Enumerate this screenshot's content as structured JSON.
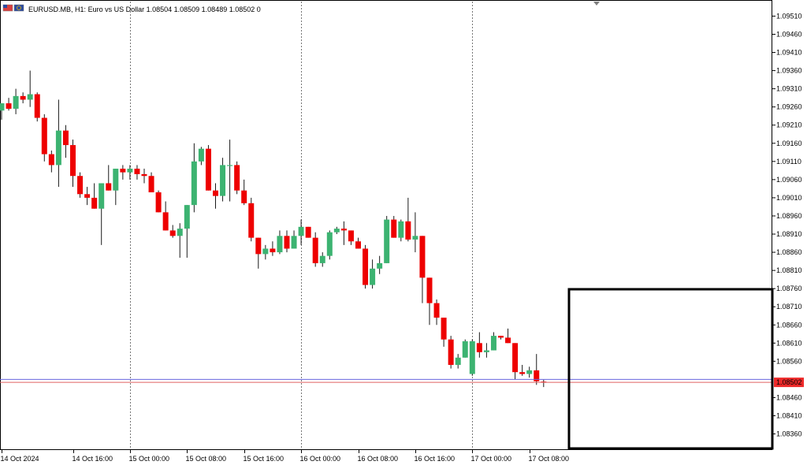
{
  "header": {
    "symbol": "EURUSD.MB",
    "timeframe": "H1:",
    "description": "Euro vs US Dollar",
    "ohlc": "1.08504 1.08509 1.08489 1.08502",
    "volume_indicator": "0",
    "flag_icon": "currency-flags-icon"
  },
  "colors": {
    "bull": "#3cb371",
    "bear": "#ee0000",
    "wick": "#1a1a1a",
    "bid_line": "#e06060",
    "ask_line": "#6a6ae0",
    "price_badge": "#ee2a2a",
    "grid": "#777777",
    "highlight_box": "#000000"
  },
  "chart_data": {
    "type": "candlestick",
    "ylim": [
      1.0832,
      1.0955
    ],
    "y_ticks": [
      "1.09510",
      "1.09460",
      "1.09410",
      "1.09360",
      "1.09310",
      "1.09260",
      "1.09210",
      "1.09160",
      "1.09110",
      "1.09060",
      "1.09010",
      "1.08960",
      "1.08910",
      "1.08860",
      "1.08810",
      "1.08760",
      "1.08710",
      "1.08660",
      "1.08610",
      "1.08560",
      "1.08460",
      "1.08410",
      "1.08360"
    ],
    "x_ticks": [
      {
        "label": "14 Oct 2024",
        "index": 0
      },
      {
        "label": "14 Oct 16:00",
        "index": 10
      },
      {
        "label": "15 Oct 00:00",
        "index": 18
      },
      {
        "label": "15 Oct 08:00",
        "index": 26
      },
      {
        "label": "15 Oct 16:00",
        "index": 34
      },
      {
        "label": "16 Oct 00:00",
        "index": 42
      },
      {
        "label": "16 Oct 08:00",
        "index": 50
      },
      {
        "label": "16 Oct 16:00",
        "index": 58
      },
      {
        "label": "17 Oct 00:00",
        "index": 66
      },
      {
        "label": "17 Oct 08:00",
        "index": 74
      }
    ],
    "day_separators": [
      18,
      42,
      66
    ],
    "current_price": "1.08502",
    "bid": 1.08502,
    "ask": 1.0851,
    "candles": [
      [
        1.0925,
        1.0927,
        1.09225,
        1.0927
      ],
      [
        1.0927,
        1.09285,
        1.0925,
        1.09255
      ],
      [
        1.09255,
        1.0931,
        1.0924,
        1.0929
      ],
      [
        1.0929,
        1.093,
        1.0927,
        1.0928
      ],
      [
        1.0928,
        1.0936,
        1.0926,
        1.09295
      ],
      [
        1.09295,
        1.093,
        1.0922,
        1.0923
      ],
      [
        1.0923,
        1.0924,
        1.0911,
        1.0913
      ],
      [
        1.0913,
        1.0914,
        1.0908,
        1.091
      ],
      [
        1.091,
        1.0928,
        1.0904,
        1.09195
      ],
      [
        1.09195,
        1.0921,
        1.0912,
        1.09155
      ],
      [
        1.09155,
        1.0917,
        1.0904,
        1.0907
      ],
      [
        1.0907,
        1.0908,
        1.0901,
        1.0902
      ],
      [
        1.0902,
        1.0904,
        1.0899,
        1.0901
      ],
      [
        1.0901,
        1.0905,
        1.0898,
        1.0898
      ],
      [
        1.0898,
        1.0905,
        1.0888,
        1.0905
      ],
      [
        1.0905,
        1.091,
        1.0903,
        1.0903
      ],
      [
        1.0903,
        1.0909,
        1.0899,
        1.0909
      ],
      [
        1.0909,
        1.091,
        1.0906,
        1.0908
      ],
      [
        1.0908,
        1.091,
        1.0906,
        1.0909
      ],
      [
        1.0909,
        1.091,
        1.0906,
        1.09075
      ],
      [
        1.09075,
        1.0909,
        1.0905,
        1.0907
      ],
      [
        1.0907,
        1.0908,
        1.0903,
        1.09025
      ],
      [
        1.09025,
        1.0903,
        1.0897,
        1.0897
      ],
      [
        1.0897,
        1.09,
        1.0892,
        1.0892
      ],
      [
        1.0892,
        1.08935,
        1.089,
        1.08905
      ],
      [
        1.08905,
        1.0894,
        1.08845,
        1.08925
      ],
      [
        1.08925,
        1.0899,
        1.08845,
        1.0899
      ],
      [
        1.0899,
        1.0916,
        1.0897,
        1.0911
      ],
      [
        1.0911,
        1.0915,
        1.091,
        1.09145
      ],
      [
        1.09145,
        1.09155,
        1.0903,
        1.0903
      ],
      [
        1.0903,
        1.0905,
        1.0898,
        1.09015
      ],
      [
        1.09015,
        1.0912,
        1.09,
        1.091
      ],
      [
        1.091,
        1.0917,
        1.09,
        1.091
      ],
      [
        1.091,
        1.0911,
        1.0902,
        1.0903
      ],
      [
        1.0903,
        1.0906,
        1.0899,
        1.08995
      ],
      [
        1.08995,
        1.0901,
        1.0889,
        1.089
      ],
      [
        1.089,
        1.089,
        1.08815,
        1.08855
      ],
      [
        1.08855,
        1.0888,
        1.0884,
        1.0887
      ],
      [
        1.0887,
        1.0889,
        1.0885,
        1.0886
      ],
      [
        1.0886,
        1.0892,
        1.08855,
        1.08905
      ],
      [
        1.08905,
        1.0892,
        1.0886,
        1.0887
      ],
      [
        1.0887,
        1.0892,
        1.0887,
        1.08905
      ],
      [
        1.08905,
        1.0895,
        1.0888,
        1.0893
      ],
      [
        1.0893,
        1.0893,
        1.089,
        1.089
      ],
      [
        1.089,
        1.08915,
        1.0882,
        1.0883
      ],
      [
        1.0883,
        1.0886,
        1.0882,
        1.0885
      ],
      [
        1.0885,
        1.0892,
        1.0884,
        1.08915
      ],
      [
        1.08915,
        1.0893,
        1.0891,
        1.08925
      ],
      [
        1.08925,
        1.08945,
        1.0888,
        1.0892
      ],
      [
        1.0892,
        1.0892,
        1.0888,
        1.0889
      ],
      [
        1.0889,
        1.089,
        1.0887,
        1.0887
      ],
      [
        1.0887,
        1.0888,
        1.0876,
        1.0877
      ],
      [
        1.0877,
        1.0884,
        1.0876,
        1.08815
      ],
      [
        1.08815,
        1.0885,
        1.088,
        1.0883
      ],
      [
        1.0883,
        1.0896,
        1.0883,
        1.0895
      ],
      [
        1.0895,
        1.0896,
        1.089,
        1.089
      ],
      [
        1.089,
        1.0895,
        1.0889,
        1.08945
      ],
      [
        1.08945,
        1.0901,
        1.0889,
        1.08895
      ],
      [
        1.08895,
        1.0897,
        1.0886,
        1.08905
      ],
      [
        1.08905,
        1.08905,
        1.0872,
        1.0879
      ],
      [
        1.0879,
        1.0879,
        1.0866,
        1.0872
      ],
      [
        1.0872,
        1.0873,
        1.0866,
        1.0868
      ],
      [
        1.0868,
        1.0868,
        1.086,
        1.0862
      ],
      [
        1.0862,
        1.0863,
        1.0854,
        1.0855
      ],
      [
        1.0855,
        1.0858,
        1.0854,
        1.0857
      ],
      [
        1.0857,
        1.0862,
        1.0857,
        1.08615
      ],
      [
        1.08525,
        1.0862,
        1.0852,
        1.08615
      ],
      [
        1.0861,
        1.0864,
        1.0857,
        1.08585
      ],
      [
        1.08585,
        1.0861,
        1.0857,
        1.0859
      ],
      [
        1.0859,
        1.0864,
        1.0859,
        1.0863
      ],
      [
        1.0863,
        1.0863,
        1.0862,
        1.08625
      ],
      [
        1.08625,
        1.0865,
        1.0861,
        1.0861
      ],
      [
        1.0861,
        1.0861,
        1.0851,
        1.0853
      ],
      [
        1.0853,
        1.0855,
        1.0852,
        1.08525
      ],
      [
        1.08525,
        1.08545,
        1.08515,
        1.08535
      ],
      [
        1.08535,
        1.0858,
        1.08495,
        1.08505
      ],
      [
        1.08504,
        1.08509,
        1.08489,
        1.08502
      ]
    ]
  }
}
